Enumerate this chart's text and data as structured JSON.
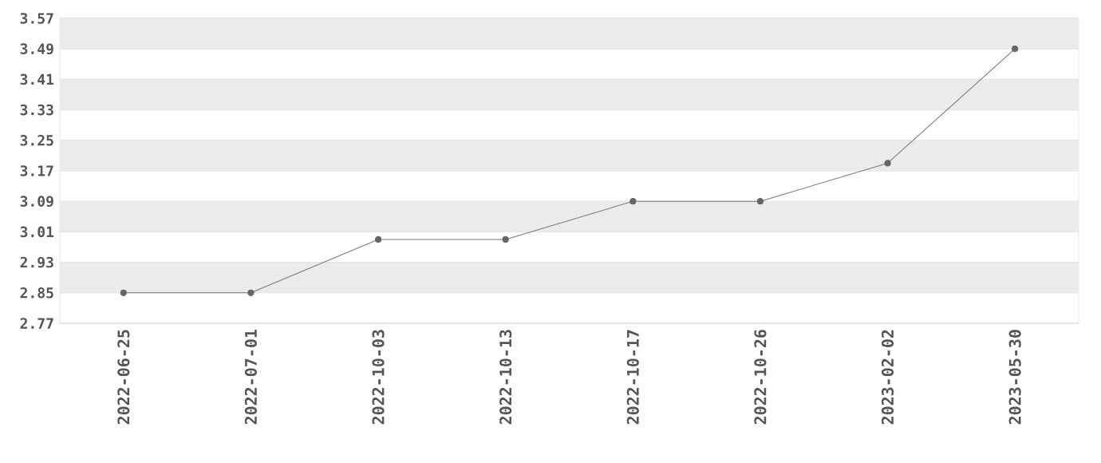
{
  "chart_data": {
    "type": "line",
    "categories": [
      "2022-06-25",
      "2022-07-01",
      "2022-10-03",
      "2022-10-13",
      "2022-10-17",
      "2022-10-26",
      "2023-02-02",
      "2023-05-30"
    ],
    "series": [
      {
        "color": "#777777",
        "values": [
          2.85,
          2.85,
          2.99,
          2.99,
          3.09,
          3.09,
          3.19,
          3.49
        ]
      }
    ],
    "ylim": [
      2.77,
      3.57
    ],
    "yticks": [
      2.77,
      2.85,
      2.93,
      3.01,
      3.09,
      3.17,
      3.25,
      3.33,
      3.41,
      3.49,
      3.57
    ],
    "grid": "y",
    "marker": "circle",
    "line_style": "solid"
  }
}
